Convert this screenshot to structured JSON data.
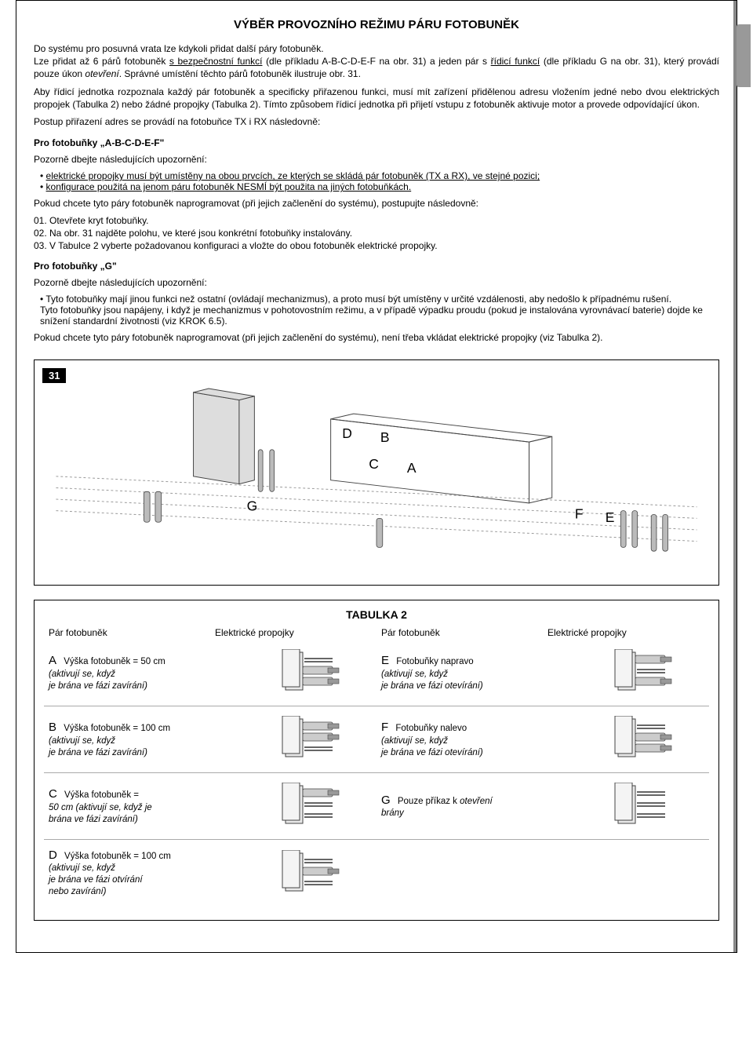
{
  "title": "VÝBĚR PROVOZNÍHO REŽIMU PÁRU FOTOBUNĚK",
  "intro_p1_a": "Do systému pro posuvná vrata lze kdykoli přidat další páry fotobuněk.",
  "intro_p1_b": "Lze přidat až 6 párů fotobuněk ",
  "intro_p1_u1": "s bezpečnostní funkcí",
  "intro_p1_c": " (dle příkladu A-B-C-D-E-F na obr. 31) a jeden pár s ",
  "intro_p1_u2": "řídicí funkcí",
  "intro_p1_d": " (dle příkladu G na obr. 31), který provádí pouze úkon ",
  "intro_p1_i1": "otevření",
  "intro_p1_e": ". Správné umístění těchto párů fotobuněk ilustruje obr. 31.",
  "intro_p2": "Aby řídicí jednotka rozpoznala každý pár fotobuněk a specificky přiřazenou funkci, musí mít zařízení přidělenou adresu vložením jedné nebo dvou elektrických propojek (Tabulka 2) nebo žádné propojky (Tabulka 2). Tímto způsobem řídicí jednotka při přijetí vstupu z fotobuněk aktivuje motor a provede odpovídající úkon.",
  "intro_p3": "Postup přiřazení adres se provádí na fotobuňce TX i RX následovně:",
  "sub1_title": "Pro fotobuňky „A-B-C-D-E-F\"",
  "sub1_lead": "Pozorně dbejte následujících upozornění:",
  "sub1_b1": "elektrické propojky musí být umístěny na obou prvcích, ze kterých se skládá pár fotobuněk (TX a RX), ve stejné pozici;",
  "sub1_b2": "konfigurace použitá na jenom páru fotobuněk NESMÍ být použita na jiných fotobuňkách.",
  "sub1_p2": "Pokud chcete tyto páry fotobuněk naprogramovat (při jejich začlenění do systému), postupujte následovně:",
  "sub1_s1": "01.  Otevřete kryt fotobuňky.",
  "sub1_s2": "02.  Na obr. 31 najděte polohu, ve které jsou konkrétní fotobuňky instalovány.",
  "sub1_s3": "03.  V Tabulce 2 vyberte požadovanou konfiguraci a vložte do obou fotobuněk elektrické propojky.",
  "sub2_title": "Pro fotobuňky „G\"",
  "sub2_lead": "Pozorně dbejte následujících upozornění:",
  "sub2_b1a": "Tyto fotobuňky mají jinou funkci než ostatní (ovládají mechanizmus), a proto musí být umístěny v určité vzdálenosti, aby nedošlo k případnému rušení.",
  "sub2_b1b": "Tyto fotobuňky jsou napájeny, i když je mechanizmus v pohotovostním režimu, a v případě výpadku proudu (pokud je instalována vyrovnávací baterie) dojde ke snížení standardní životnosti (viz KROK 6.5).",
  "sub2_p2": "Pokud chcete tyto páry fotobuněk naprogramovat (při jejich začlenění do systému), není třeba vkládat elektrické propojky (viz Tabulka 2).",
  "fig_num": "31",
  "fig_labels": {
    "A": "A",
    "B": "B",
    "C": "C",
    "D": "D",
    "E": "E",
    "F": "F",
    "G": "G"
  },
  "table_title": "TABULKA 2",
  "th_pair": "Pár fotobuněk",
  "th_jumper": "Elektrické propojky",
  "rows": [
    {
      "L": {
        "letter": "A",
        "t1": "Výška fotobuněk = 50 cm",
        "t2": "(aktivují se, když",
        "t3": "je brána ve fázi zavírání)"
      },
      "R": {
        "letter": "E",
        "t1": "Fotobuňky napravo",
        "t2": "(aktivují se, když",
        "t3": "je brána ve fázi otevírání)"
      },
      "jL": "low-mid",
      "jR": "top-low"
    },
    {
      "L": {
        "letter": "B",
        "t1": "Výška fotobuněk = 100 cm",
        "t2": "(aktivují se, když",
        "t3": "je brána ve fázi zavírání)"
      },
      "R": {
        "letter": "F",
        "t1": "Fotobuňky nalevo",
        "t2": "(aktivují se, když",
        "t3": "je brána ve fázi otevírání)"
      },
      "jL": "top-mid",
      "jR": "mid-low"
    },
    {
      "L": {
        "letter": "C",
        "t1": "Výška fotobuněk =",
        "t2": "50 cm (aktivují se, když je",
        "t3": "brána ve fázi zavírání)"
      },
      "R": {
        "letter": "G",
        "t1": "Pouze příkaz k ",
        "t1i": "otevření",
        "t2": "brány",
        "t3": ""
      },
      "jL": "top-only",
      "jR": "none"
    },
    {
      "L": {
        "letter": "D",
        "t1": "Výška fotobuněk = 100 cm",
        "t2": "(aktivují se, když",
        "t3": "je brána ve fázi otvírání",
        "t4": "nebo zavírání)"
      },
      "R": null,
      "jL": "mid-only",
      "jR": null
    }
  ],
  "colors": {
    "line": "#555",
    "fill": "#ddd",
    "fill2": "#bbb",
    "dark": "#444"
  }
}
